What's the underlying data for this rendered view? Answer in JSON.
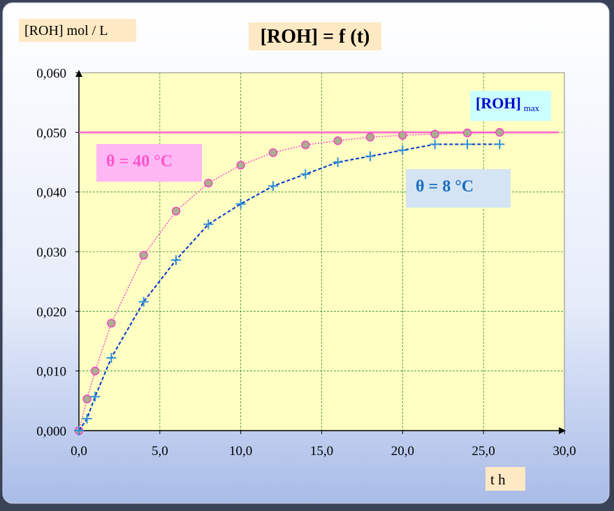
{
  "chart_data": {
    "type": "line",
    "title": "[ROH] = f (t)",
    "y_label": "[ROH] mol / L",
    "x_label": "t h",
    "x": [
      0,
      0.5,
      1,
      2,
      4,
      6,
      8,
      10,
      12,
      14,
      16,
      18,
      20,
      22,
      24,
      26
    ],
    "series": [
      {
        "name": "θ = 40 °C",
        "color": "#ff33cc",
        "values": [
          0,
          0.0053,
          0.01,
          0.018,
          0.0294,
          0.0368,
          0.0415,
          0.0445,
          0.0466,
          0.0479,
          0.0486,
          0.0492,
          0.0495,
          0.0497,
          0.0499,
          0.05
        ]
      },
      {
        "name": "θ = 8 °C",
        "color": "#0033cc",
        "values": [
          0,
          0.002,
          0.0057,
          0.0122,
          0.0216,
          0.0286,
          0.0346,
          0.038,
          0.041,
          0.043,
          0.045,
          0.046,
          0.047,
          0.048,
          0.048,
          0.048
        ]
      }
    ],
    "reference_line": {
      "value": 0.05,
      "color": "#ff66cc",
      "label": "[ROH]",
      "label_subscript": "max"
    },
    "xlim": [
      0,
      30
    ],
    "xticks": [
      {
        "value": 0,
        "label": "0,0"
      },
      {
        "value": 5,
        "label": "5,0"
      },
      {
        "value": 10,
        "label": "10,0"
      },
      {
        "value": 15,
        "label": "15,0"
      },
      {
        "value": 20,
        "label": "20,0"
      },
      {
        "value": 25,
        "label": "25,0"
      },
      {
        "value": 30,
        "label": "30,0"
      }
    ],
    "ylim": [
      0,
      0.06
    ],
    "yticks": [
      {
        "value": 0,
        "label": "0,000"
      },
      {
        "value": 0.01,
        "label": "0,010"
      },
      {
        "value": 0.02,
        "label": "0,020"
      },
      {
        "value": 0.03,
        "label": "0,030"
      },
      {
        "value": 0.04,
        "label": "0,040"
      },
      {
        "value": 0.05,
        "label": "0,050"
      },
      {
        "value": 0.06,
        "label": "0,060"
      }
    ],
    "grid": true
  }
}
